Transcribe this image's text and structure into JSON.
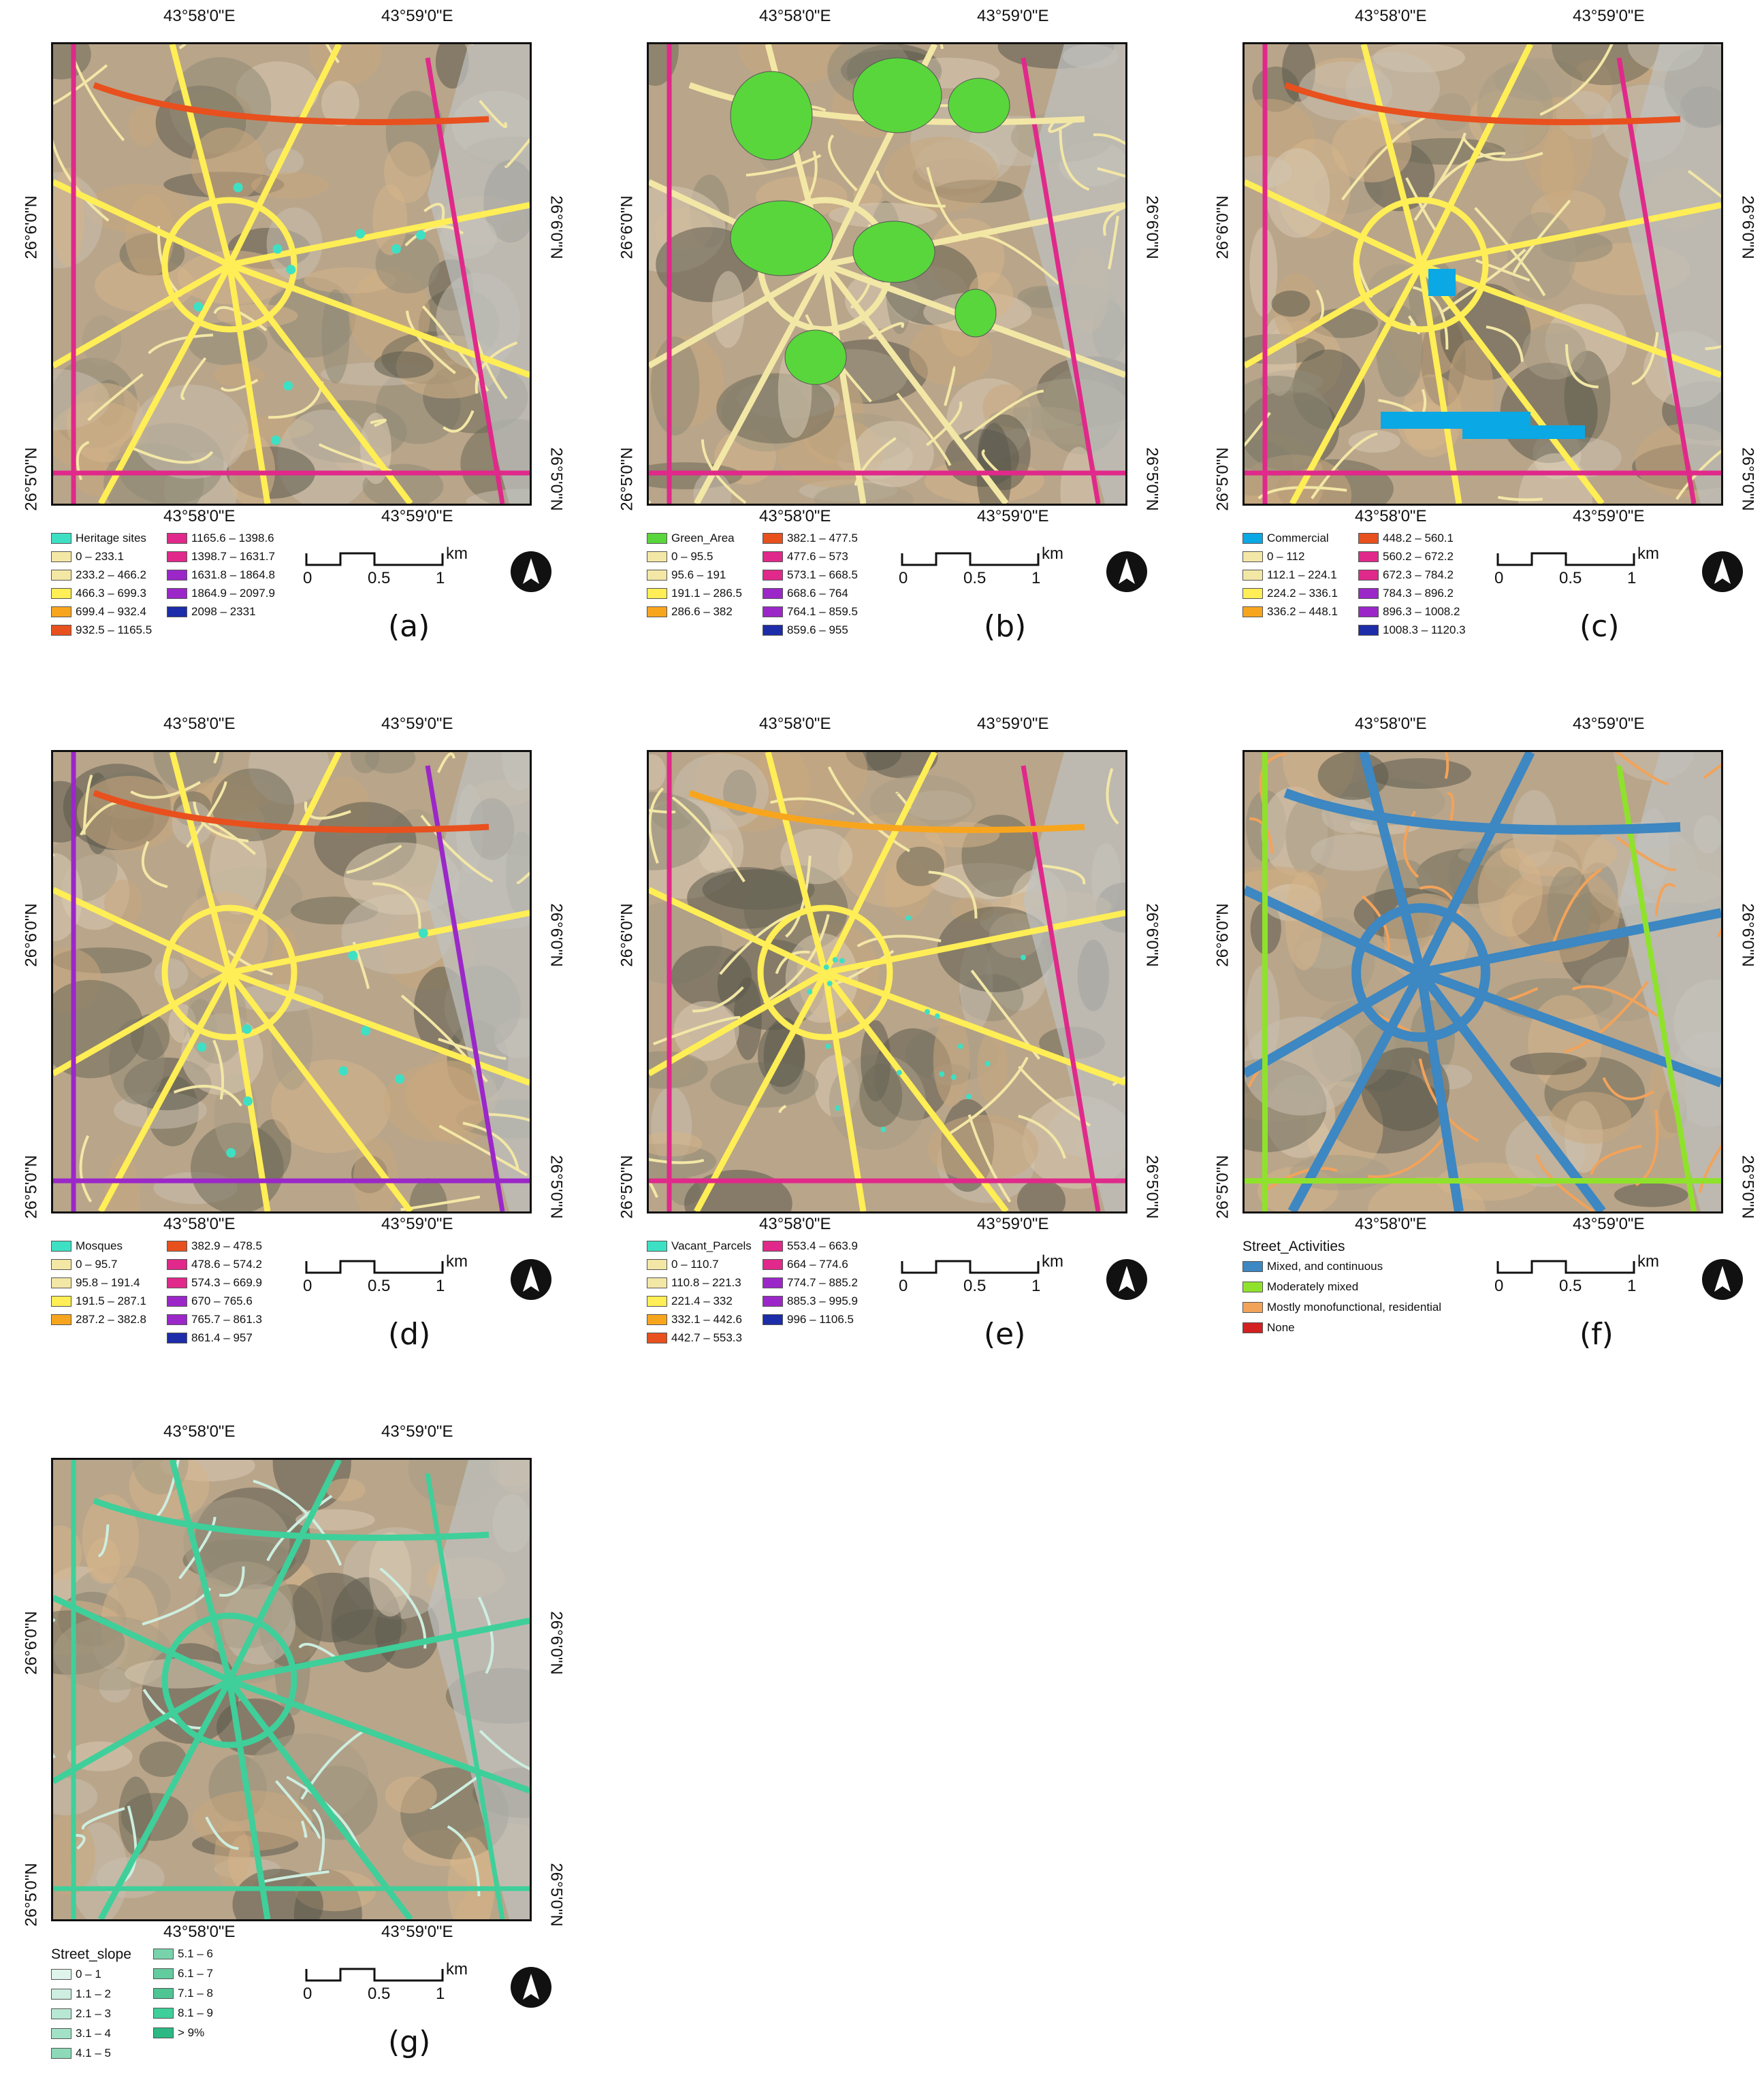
{
  "coords": {
    "lon_west": "43°58'0\"E",
    "lon_east": "43°59'0\"E",
    "lat_north": "26°6'0\"N",
    "lat_south": "26°5'0\"N"
  },
  "scale": {
    "ticks": [
      "0",
      "0.5",
      "1"
    ],
    "unit": "km"
  },
  "colors": {
    "yellow_light": "#f3e7a6",
    "yellow": "#ffee55",
    "orange": "#f8a51e",
    "red_orange": "#e8501e",
    "magenta": "#e0298a",
    "purple": "#9b27c9",
    "blue": "#1d2ca8",
    "green_area": "#59d63b",
    "commercial": "#0aa8e4",
    "mixed": "#3d87c2",
    "moderate": "#8fe22b",
    "mono": "#f2a35a",
    "none": "#d32020",
    "slope_light": "#cdeee0",
    "slope_dark": "#3fcf9a"
  },
  "panels": [
    {
      "label": "(a)",
      "legend": {
        "point_label": "Heritage sites",
        "col1": [
          "0 – 233.1",
          "233.2 – 466.2",
          "466.3 – 699.3",
          "699.4 – 932.4",
          "932.5 – 1165.5"
        ],
        "col2": [
          "1165.6 – 1398.6",
          "1398.7 – 1631.7",
          "1631.8 – 1864.8",
          "1864.9 – 2097.9",
          "2098 – 2331"
        ]
      }
    },
    {
      "label": "(b)",
      "legend": {
        "point_label": "Green_Area",
        "col1": [
          "0 – 95.5",
          "95.6 – 191",
          "191.1 – 286.5",
          "286.6 – 382"
        ],
        "col2": [
          "382.1 – 477.5",
          "477.6 – 573",
          "573.1 – 668.5",
          "668.6 – 764",
          "764.1 – 859.5",
          "859.6 – 955"
        ]
      }
    },
    {
      "label": "(c)",
      "legend": {
        "point_label": "Commercial",
        "col1": [
          "0 – 112",
          "112.1 – 224.1",
          "224.2 – 336.1",
          "336.2 – 448.1"
        ],
        "col2": [
          "448.2 – 560.1",
          "560.2 – 672.2",
          "672.3 – 784.2",
          "784.3 – 896.2",
          "896.3 – 1008.2",
          "1008.3 – 1120.3"
        ]
      }
    },
    {
      "label": "(d)",
      "legend": {
        "point_label": "Mosques",
        "col1": [
          "0 – 95.7",
          "95.8 – 191.4",
          "191.5 – 287.1",
          "287.2 – 382.8"
        ],
        "col2": [
          "382.9 – 478.5",
          "478.6 – 574.2",
          "574.3 – 669.9",
          "670 – 765.6",
          "765.7 – 861.3",
          "861.4 – 957"
        ]
      }
    },
    {
      "label": "(e)",
      "legend": {
        "point_label": "Vacant_Parcels",
        "col1": [
          "0 – 110.7",
          "110.8 – 221.3",
          "221.4 – 332",
          "332.1 – 442.6",
          "442.7 – 553.3"
        ],
        "col2": [
          "553.4 – 663.9",
          "664 – 774.6",
          "774.7 – 885.2",
          "885.3 – 995.9",
          "996 – 1106.5"
        ]
      }
    },
    {
      "label": "(f)",
      "legend": {
        "title": "Street_Activities",
        "items": [
          "Mixed, and continuous",
          "Moderately mixed",
          "Mostly monofunctional, residential",
          "None"
        ]
      }
    },
    {
      "label": "(g)",
      "legend": {
        "title": "Street_slope",
        "col1": [
          "0 – 1",
          "1.1 – 2",
          "2.1 – 3",
          "3.1 – 4",
          "4.1 – 5"
        ],
        "col2": [
          "5.1 – 6",
          "6.1 – 7",
          "7.1 – 8",
          "8.1 – 9",
          "> 9%"
        ]
      }
    }
  ]
}
